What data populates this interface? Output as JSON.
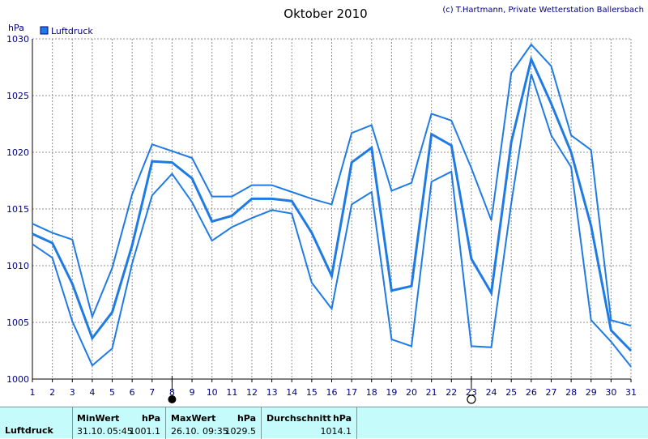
{
  "title": "Oktober 2010",
  "credit": "(c) T.Hartmann, Private Wetterstation Ballersbach",
  "legend_label": "Luftdruck",
  "colors": {
    "line": "#1e7be6",
    "grid": "#909090",
    "background": "#ffffff",
    "panel": "#c6fbfb"
  },
  "chart_data": {
    "type": "line",
    "ylabel": "hPa",
    "ylim": [
      1000,
      1030
    ],
    "yticks": [
      1000,
      1005,
      1010,
      1015,
      1020,
      1025,
      1030
    ],
    "x": [
      1,
      2,
      3,
      4,
      5,
      6,
      7,
      8,
      9,
      10,
      11,
      12,
      13,
      14,
      15,
      16,
      17,
      18,
      19,
      20,
      21,
      22,
      23,
      24,
      25,
      26,
      27,
      28,
      29,
      30,
      31
    ],
    "grid": true,
    "legend_position": "top-left",
    "series": [
      {
        "name": "Luftdruck",
        "role": "max",
        "values": [
          1013.7,
          1012.9,
          1012.3,
          1005.5,
          1009.8,
          1016.3,
          1020.7,
          1020.1,
          1019.5,
          1016.1,
          1016.1,
          1017.1,
          1017.1,
          1016.5,
          1015.9,
          1015.4,
          1021.7,
          1022.4,
          1016.6,
          1017.3,
          1023.4,
          1022.8,
          1018.6,
          1014.0,
          1027.0,
          1029.5,
          1027.6,
          1021.5,
          1020.2,
          1005.2,
          1004.7
        ]
      },
      {
        "role": "mean",
        "values": [
          1012.8,
          1012.0,
          1008.4,
          1003.6,
          1005.9,
          1011.8,
          1019.2,
          1019.1,
          1017.7,
          1013.9,
          1014.4,
          1015.9,
          1015.9,
          1015.7,
          1012.9,
          1009.1,
          1019.1,
          1020.4,
          1007.8,
          1008.2,
          1021.6,
          1020.6,
          1010.6,
          1007.6,
          1020.9,
          1028.2,
          1024.3,
          1020.0,
          1013.5,
          1004.3,
          1002.5
        ]
      },
      {
        "role": "min",
        "values": [
          1011.9,
          1010.7,
          1005.1,
          1001.2,
          1002.7,
          1010.2,
          1016.2,
          1018.1,
          1015.6,
          1012.2,
          1013.4,
          1014.2,
          1014.9,
          1014.6,
          1008.5,
          1006.2,
          1015.4,
          1016.5,
          1003.5,
          1002.9,
          1017.4,
          1018.3,
          1002.9,
          1002.8,
          1015.5,
          1026.9,
          1021.5,
          1018.7,
          1005.2,
          1003.3,
          1001.1
        ]
      }
    ],
    "markers": [
      {
        "type": "new-moon",
        "x": 8
      },
      {
        "type": "full-moon",
        "x": 23
      }
    ]
  },
  "stats": {
    "row_label": "Luftdruck",
    "min": {
      "title": "MinWert",
      "unit": "hPa",
      "date": "31.10.",
      "time": "05:45",
      "value": "1001.1"
    },
    "max": {
      "title": "MaxWert",
      "unit": "hPa",
      "date": "26.10.",
      "time": "09:35",
      "value": "1029.5"
    },
    "avg": {
      "title": "Durchschnitt",
      "unit": "hPa",
      "value": "1014.1"
    }
  }
}
